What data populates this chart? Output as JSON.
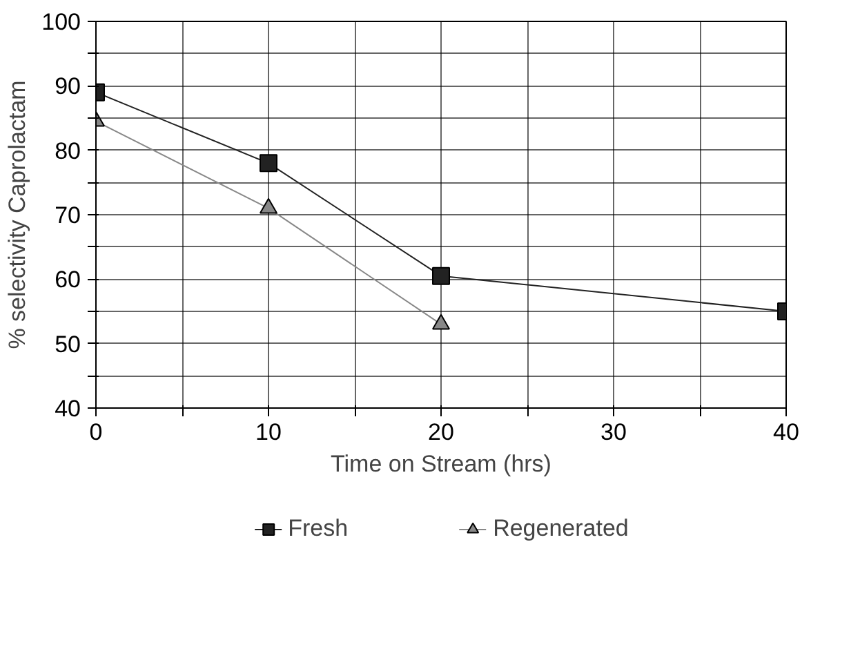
{
  "chart_data": {
    "type": "line",
    "xlabel": "Time on Stream (hrs)",
    "ylabel": "% selectivity Caprolactam",
    "xlim": [
      0,
      40
    ],
    "ylim": [
      40,
      100
    ],
    "xticks": [
      0,
      {
        "value": 5,
        "label": null
      },
      10,
      {
        "value": 15,
        "label": null
      },
      20,
      {
        "value": 25,
        "label": null
      },
      30,
      {
        "value": 35,
        "label": null
      },
      40
    ],
    "yticks": [
      40,
      {
        "value": 45,
        "label": null
      },
      50,
      {
        "value": 55,
        "label": null
      },
      60,
      {
        "value": 65,
        "label": null
      },
      70,
      {
        "value": 75,
        "label": null
      },
      80,
      {
        "value": 85,
        "label": null
      },
      90,
      {
        "value": 95,
        "label": null
      },
      100
    ],
    "grid": true,
    "legend": "bottom",
    "series": [
      {
        "name": "Fresh",
        "color": "#222222",
        "marker": "square",
        "x": [
          0,
          10,
          20,
          40
        ],
        "values": [
          89,
          78,
          60.5,
          55
        ]
      },
      {
        "name": "Regenerated",
        "color": "#888888",
        "marker": "triangle",
        "x": [
          0,
          10,
          20
        ],
        "values": [
          84.5,
          71,
          53
        ]
      }
    ]
  }
}
